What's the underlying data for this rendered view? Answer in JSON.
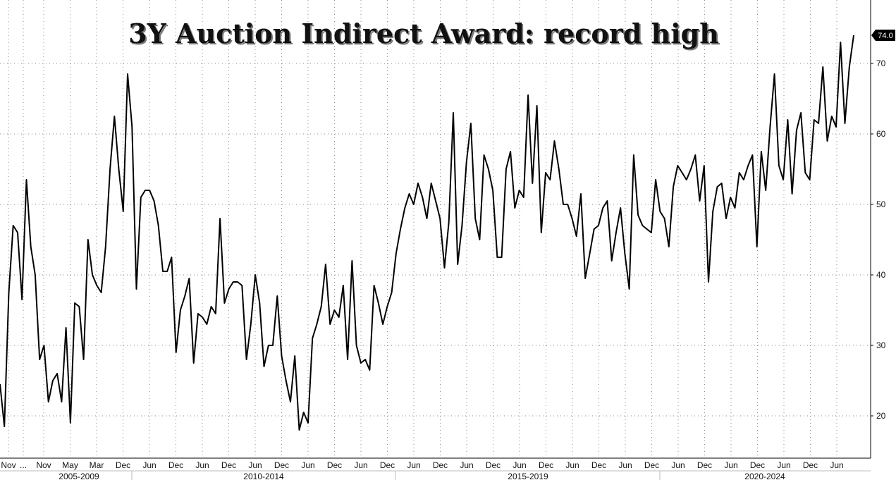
{
  "chart_data": {
    "type": "line",
    "title": "3Y Auction Indirect Award: record high",
    "xlabel": "",
    "ylabel": "",
    "ylim": [
      14,
      79
    ],
    "yticks": [
      20,
      30,
      40,
      50,
      60,
      70
    ],
    "grid": true,
    "last_value_label": "74.0",
    "x_tick_labels": [
      "Nov",
      "...",
      "Nov",
      "May",
      "Mar",
      "Dec",
      "Jun",
      "Dec",
      "Jun",
      "Dec",
      "Jun",
      "Dec",
      "Jun",
      "Dec",
      "Jun",
      "Dec",
      "Jun",
      "Dec",
      "Jun",
      "Dec",
      "Jun",
      "Dec",
      "Jun",
      "Dec",
      "Jun",
      "Dec",
      "Jun",
      "Dec",
      "Jun",
      "Dec",
      "Jun",
      "Dec",
      "Jun"
    ],
    "period_labels": [
      "2005-2009",
      "2010-2014",
      "2015-2019",
      "2020-2024"
    ],
    "series": [
      {
        "color": "#000000",
        "values": [
          24.5,
          18.5,
          37.5,
          47,
          46,
          36.5,
          53.5,
          44,
          40,
          28,
          30,
          22,
          25,
          26,
          22,
          32.5,
          19,
          36,
          35.5,
          28,
          45,
          40,
          38.5,
          37.5,
          44,
          55,
          62.5,
          55,
          49,
          68.5,
          61,
          38,
          51,
          52,
          52,
          50.5,
          47,
          40.5,
          40.5,
          42.5,
          29,
          35,
          37,
          39.5,
          27.5,
          34.5,
          34,
          33,
          35.5,
          34.5,
          48,
          36,
          38,
          39,
          39,
          38.5,
          28,
          33,
          40,
          36,
          27,
          30,
          30,
          37,
          28.5,
          25,
          22,
          28.5,
          18,
          20.5,
          19,
          31,
          33,
          35.5,
          41.5,
          33,
          35,
          34,
          38.5,
          28,
          42,
          30,
          27.5,
          28,
          26.5,
          38.5,
          36,
          33,
          35.5,
          37.5,
          43,
          46.5,
          49.5,
          51.5,
          50,
          53,
          51,
          48,
          53,
          50.5,
          48,
          41,
          47.5,
          63,
          41.5,
          47,
          56,
          61.5,
          48,
          45,
          57,
          55,
          52,
          42.5,
          42.5,
          55,
          57.5,
          49.5,
          52,
          51,
          65.5,
          53,
          64,
          46,
          54.5,
          53.5,
          59,
          55,
          50,
          50,
          48,
          45.5,
          51.5,
          39.5,
          43,
          46.5,
          47,
          49.5,
          50.5,
          42,
          46,
          49.5,
          43,
          38,
          57,
          48.5,
          47,
          46.5,
          46,
          53.5,
          49,
          48,
          44,
          52.5,
          55.5,
          54.5,
          53.5,
          55,
          57,
          50.5,
          55.5,
          39,
          49,
          52.5,
          53,
          48,
          51,
          49.5,
          54.5,
          53.5,
          55.5,
          57,
          44,
          57.5,
          52,
          61,
          68.5,
          55.5,
          53.5,
          62,
          51.5,
          60.5,
          63,
          54.5,
          53.5,
          62,
          61.5,
          69.5,
          59,
          62.5,
          61,
          73,
          61.5,
          69.5,
          74
        ]
      }
    ]
  }
}
